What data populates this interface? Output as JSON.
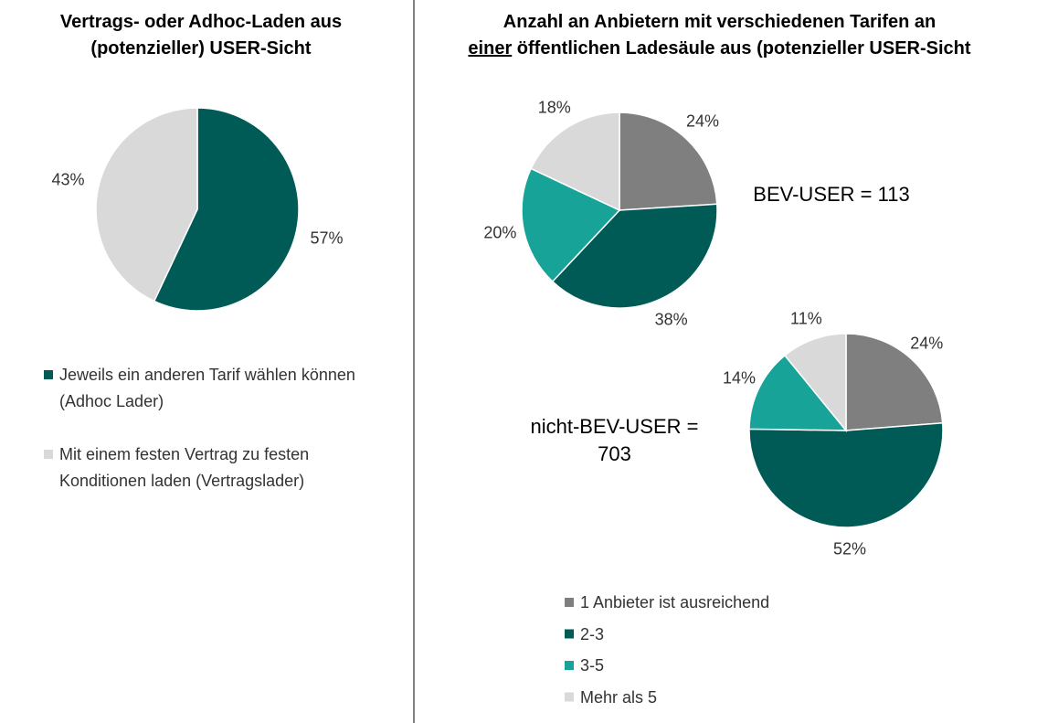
{
  "chart_data": [
    {
      "type": "pie",
      "title": [
        "Vertrags- oder Adhoc-Laden aus (potenzieller) USER-Sicht"
      ],
      "underlined": [
        false
      ],
      "categories": [
        "Jeweils ein anderen Tarif wählen können (Adhoc Lader)",
        "Mit einem festen Vertrag zu festen Konditionen laden (Vertragslader)"
      ],
      "values": [
        57,
        43
      ],
      "value_labels": [
        "57%",
        "43%"
      ],
      "colors": [
        "#005a55",
        "#d9d9d9"
      ],
      "legend": "bottom"
    },
    {
      "type": "pie",
      "title": [
        "Anzahl an Anbietern mit verschiedenen Tarifen an",
        "einer",
        "öffentlichen Ladesäule aus (potenzieller USER-Sicht"
      ],
      "underlined": [
        false,
        true,
        false
      ],
      "annotation": "BEV-USER = 113",
      "categories": [
        "1 Anbieter ist ausreichend",
        "2-3",
        "3-5",
        "Mehr als 5"
      ],
      "values": [
        24,
        38,
        20,
        18
      ],
      "value_labels": [
        "24%",
        "38%",
        "20%",
        "18%"
      ],
      "colors": [
        "#7f7f7f",
        "#005a55",
        "#17a398",
        "#d9d9d9"
      ],
      "legend": "bottom"
    },
    {
      "type": "pie",
      "annotation": "nicht-BEV-USER = 703",
      "categories": [
        "1 Anbieter ist ausreichend",
        "2-3",
        "3-5",
        "Mehr als 5"
      ],
      "values": [
        24,
        52,
        14,
        11
      ],
      "value_labels": [
        "24%",
        "52%",
        "14%",
        "11%"
      ],
      "colors": [
        "#7f7f7f",
        "#005a55",
        "#17a398",
        "#d9d9d9"
      ]
    }
  ]
}
